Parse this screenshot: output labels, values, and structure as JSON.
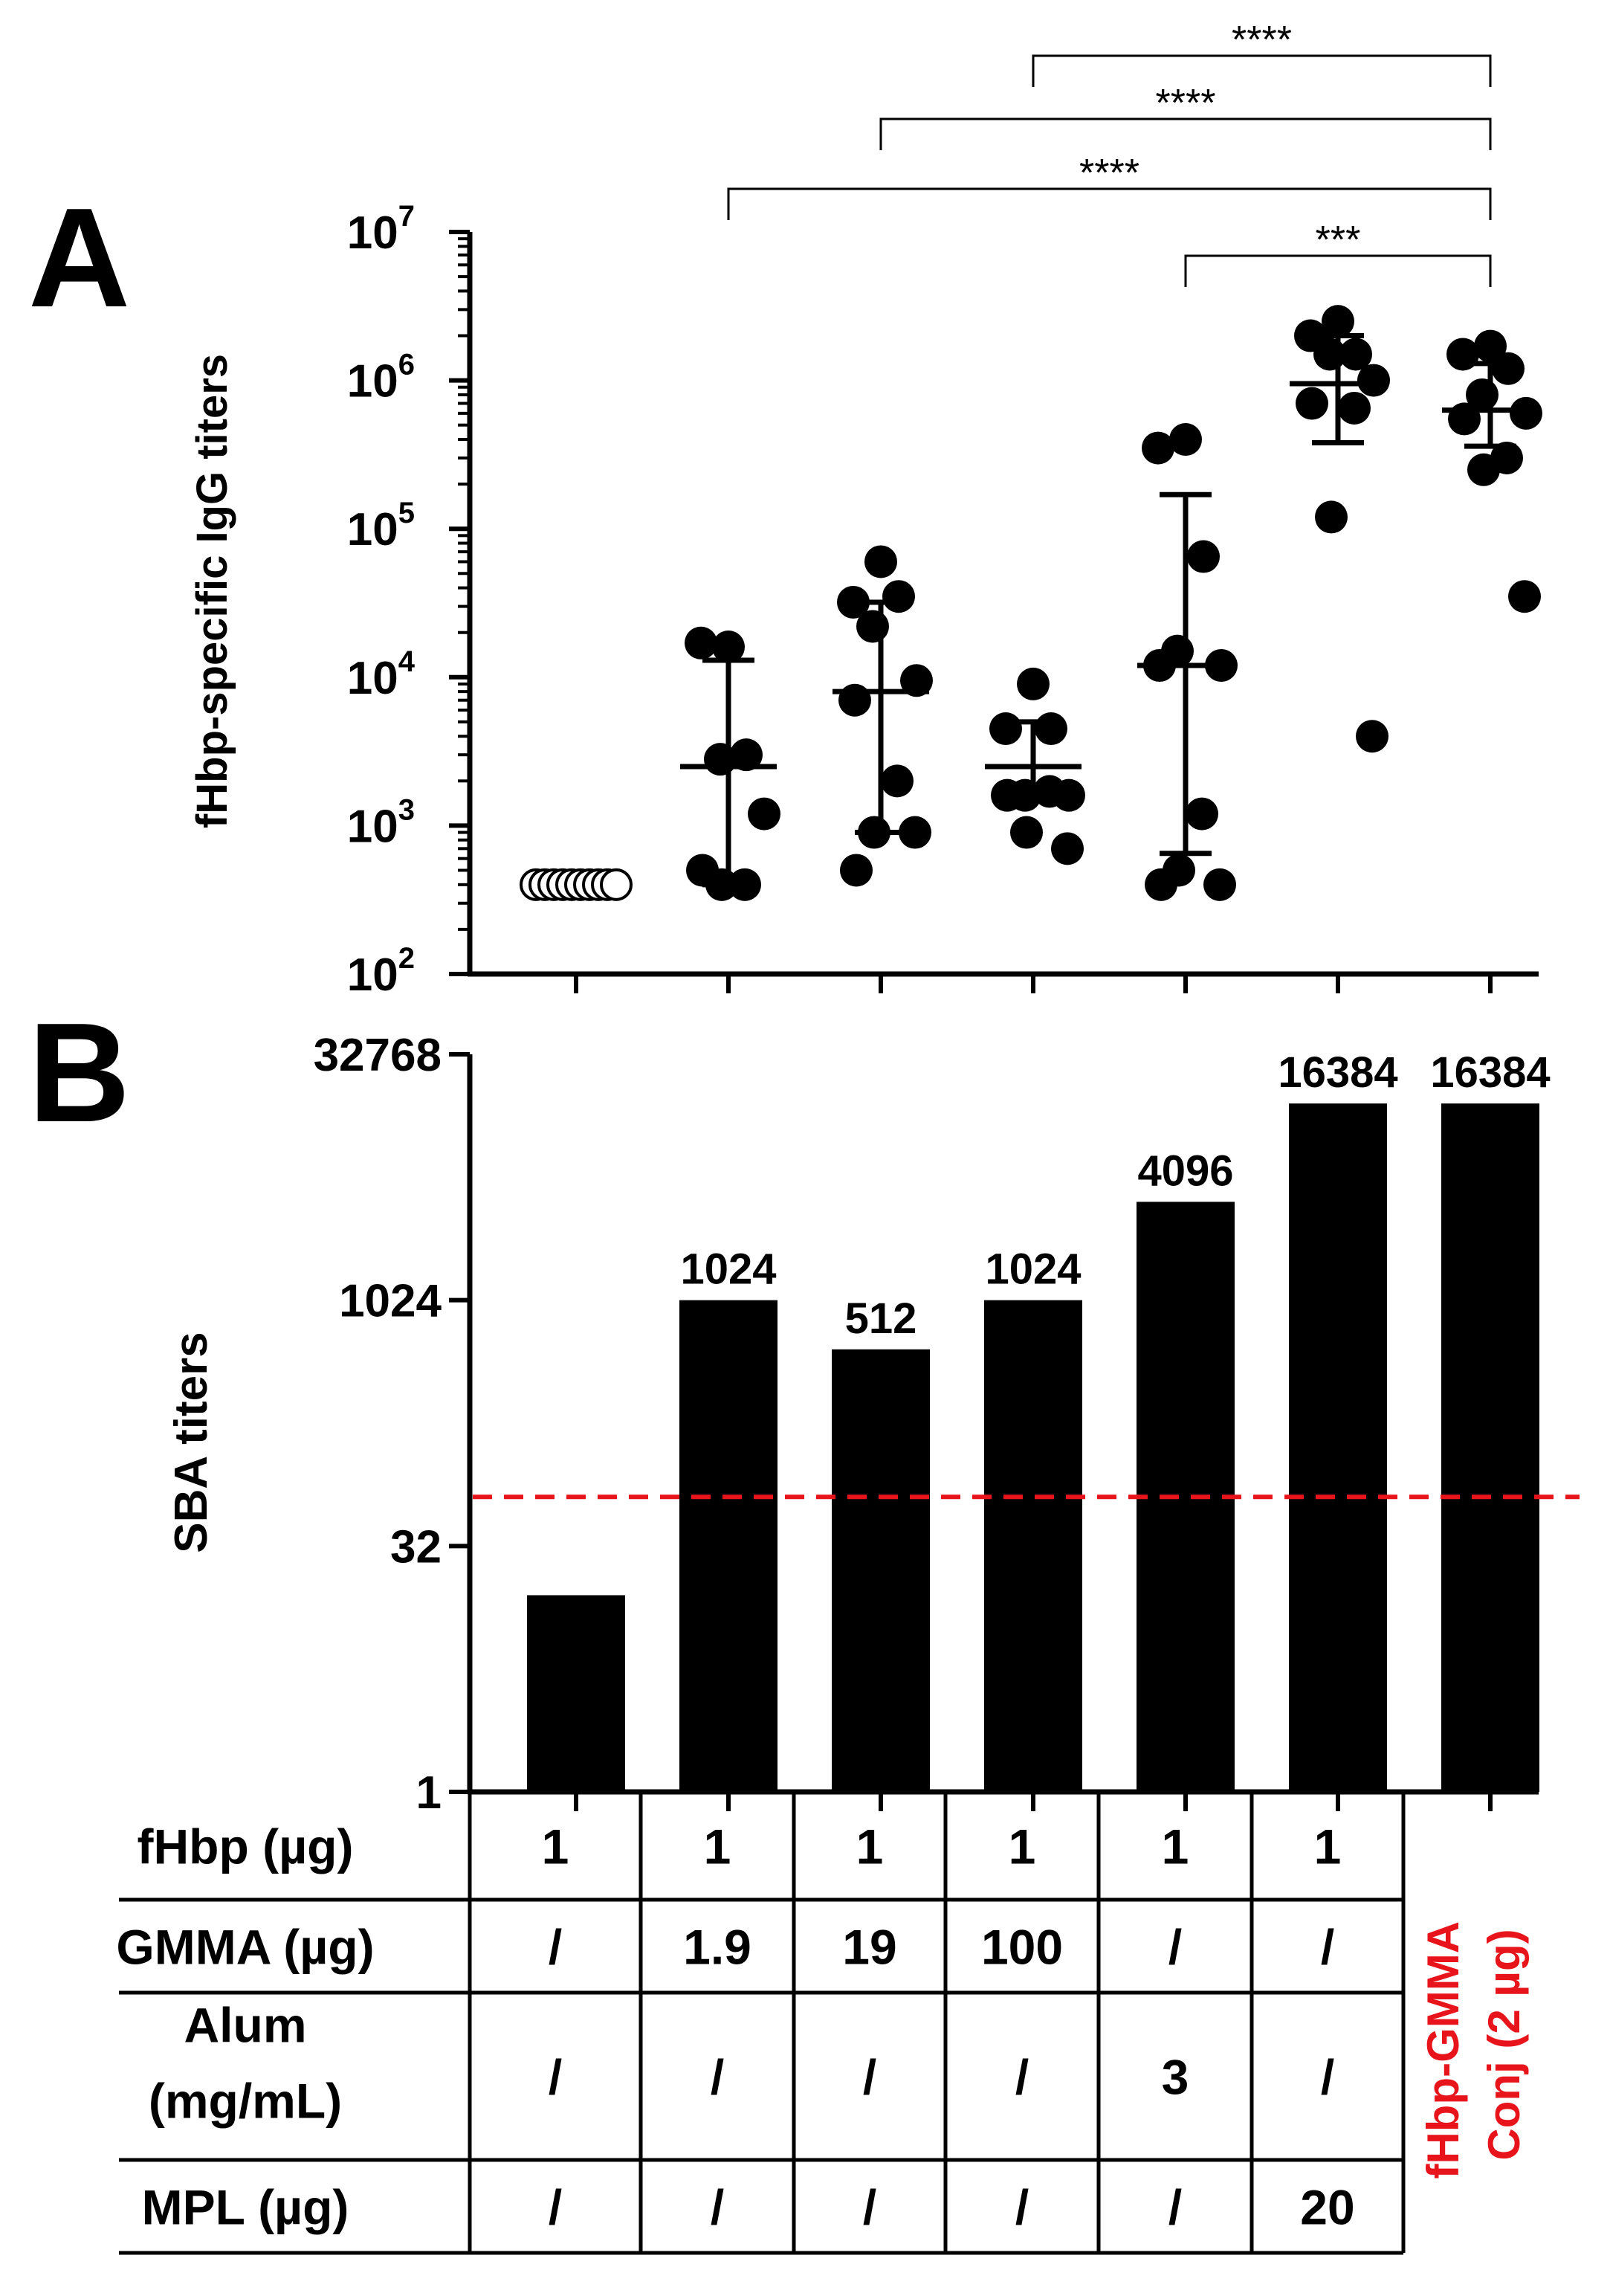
{
  "panels": {
    "a_letter": "A",
    "b_letter": "B"
  },
  "chart_data": [
    {
      "id": "A",
      "type": "scatter",
      "ylabel": "fHbp-specific IgG titers",
      "yscale": "log10",
      "ylim": [
        100,
        10000000
      ],
      "y_ticks": [
        {
          "base": "10",
          "exp": "2"
        },
        {
          "base": "10",
          "exp": "3"
        },
        {
          "base": "10",
          "exp": "4"
        },
        {
          "base": "10",
          "exp": "5"
        },
        {
          "base": "10",
          "exp": "6"
        },
        {
          "base": "10",
          "exp": "7"
        }
      ],
      "groups": [
        {
          "name": "fHbp",
          "median": 400,
          "lower": 400,
          "upper": 400,
          "points": [
            400,
            400,
            400,
            400,
            400,
            400,
            400,
            400,
            400,
            400
          ]
        },
        {
          "name": "fHbp + GMMA 1.9",
          "median": 2500,
          "lower": 400,
          "upper": 13000,
          "points": [
            16000,
            17000,
            3000,
            2800,
            1200,
            500,
            400,
            400
          ]
        },
        {
          "name": "fHbp + GMMA 19",
          "median": 8000,
          "lower": 900,
          "upper": 32000,
          "points": [
            60000,
            32000,
            35000,
            22000,
            9500,
            7000,
            2000,
            900,
            900,
            500
          ]
        },
        {
          "name": "fHbp + GMMA 100",
          "median": 2500,
          "lower": 1500,
          "upper": 5000,
          "points": [
            9000,
            4500,
            4500,
            1600,
            1600,
            1600,
            1700,
            900,
            700
          ]
        },
        {
          "name": "fHbp + Alum 3",
          "median": 12000,
          "lower": 650,
          "upper": 170000,
          "points": [
            400000,
            350000,
            65000,
            15000,
            12000,
            12000,
            1200,
            500,
            400,
            400
          ]
        },
        {
          "name": "fHbp + MPL 20",
          "median": 950000,
          "lower": 380000,
          "upper": 2000000,
          "points": [
            2500000,
            2000000,
            1500000,
            1500000,
            1000000,
            700000,
            650000,
            120000,
            4000
          ]
        },
        {
          "name": "fHbp-GMMA Conj",
          "median": 630000,
          "lower": 360000,
          "upper": 1300000,
          "points": [
            1700000,
            1500000,
            1200000,
            800000,
            600000,
            550000,
            300000,
            250000,
            35000
          ]
        }
      ],
      "significance": [
        {
          "from": 3,
          "to": 6,
          "label": "****"
        },
        {
          "from": 2,
          "to": 6,
          "label": "****"
        },
        {
          "from": 1,
          "to": 6,
          "label": "****"
        },
        {
          "from": 4,
          "to": 6,
          "label": "***"
        }
      ]
    },
    {
      "id": "B",
      "type": "bar",
      "ylabel": "SBA titers",
      "yscale": "log2",
      "ylim": [
        1,
        32768
      ],
      "y_ticks": [
        "1",
        "32",
        "1024",
        "32768"
      ],
      "values": [
        16,
        1024,
        512,
        1024,
        4096,
        16384,
        16384
      ],
      "value_labels": [
        "",
        "1024",
        "512",
        "1024",
        "4096",
        "16384",
        "16384"
      ],
      "threshold": {
        "value": 64,
        "color": "#e8141b",
        "style": "dashed"
      },
      "bar_color": "#000000"
    }
  ],
  "table": {
    "rows": [
      {
        "label": "fHbp (µg)",
        "cells": [
          "1",
          "1",
          "1",
          "1",
          "1",
          "1"
        ]
      },
      {
        "label": "GMMA  (µg)",
        "cells": [
          "/",
          "1.9",
          "19",
          "100",
          "/",
          "/"
        ]
      },
      {
        "label_lines": [
          "Alum",
          "(mg/mL)"
        ],
        "cells": [
          "/",
          "/",
          "/",
          "/",
          "3",
          "/"
        ]
      },
      {
        "label": "MPL (µg)",
        "cells": [
          "/",
          "/",
          "/",
          "/",
          "/",
          "20"
        ]
      }
    ],
    "conj_label_lines": [
      "fHbp-GMMA",
      "Conj (2 µg)"
    ],
    "conj_color": "#e8141b"
  }
}
